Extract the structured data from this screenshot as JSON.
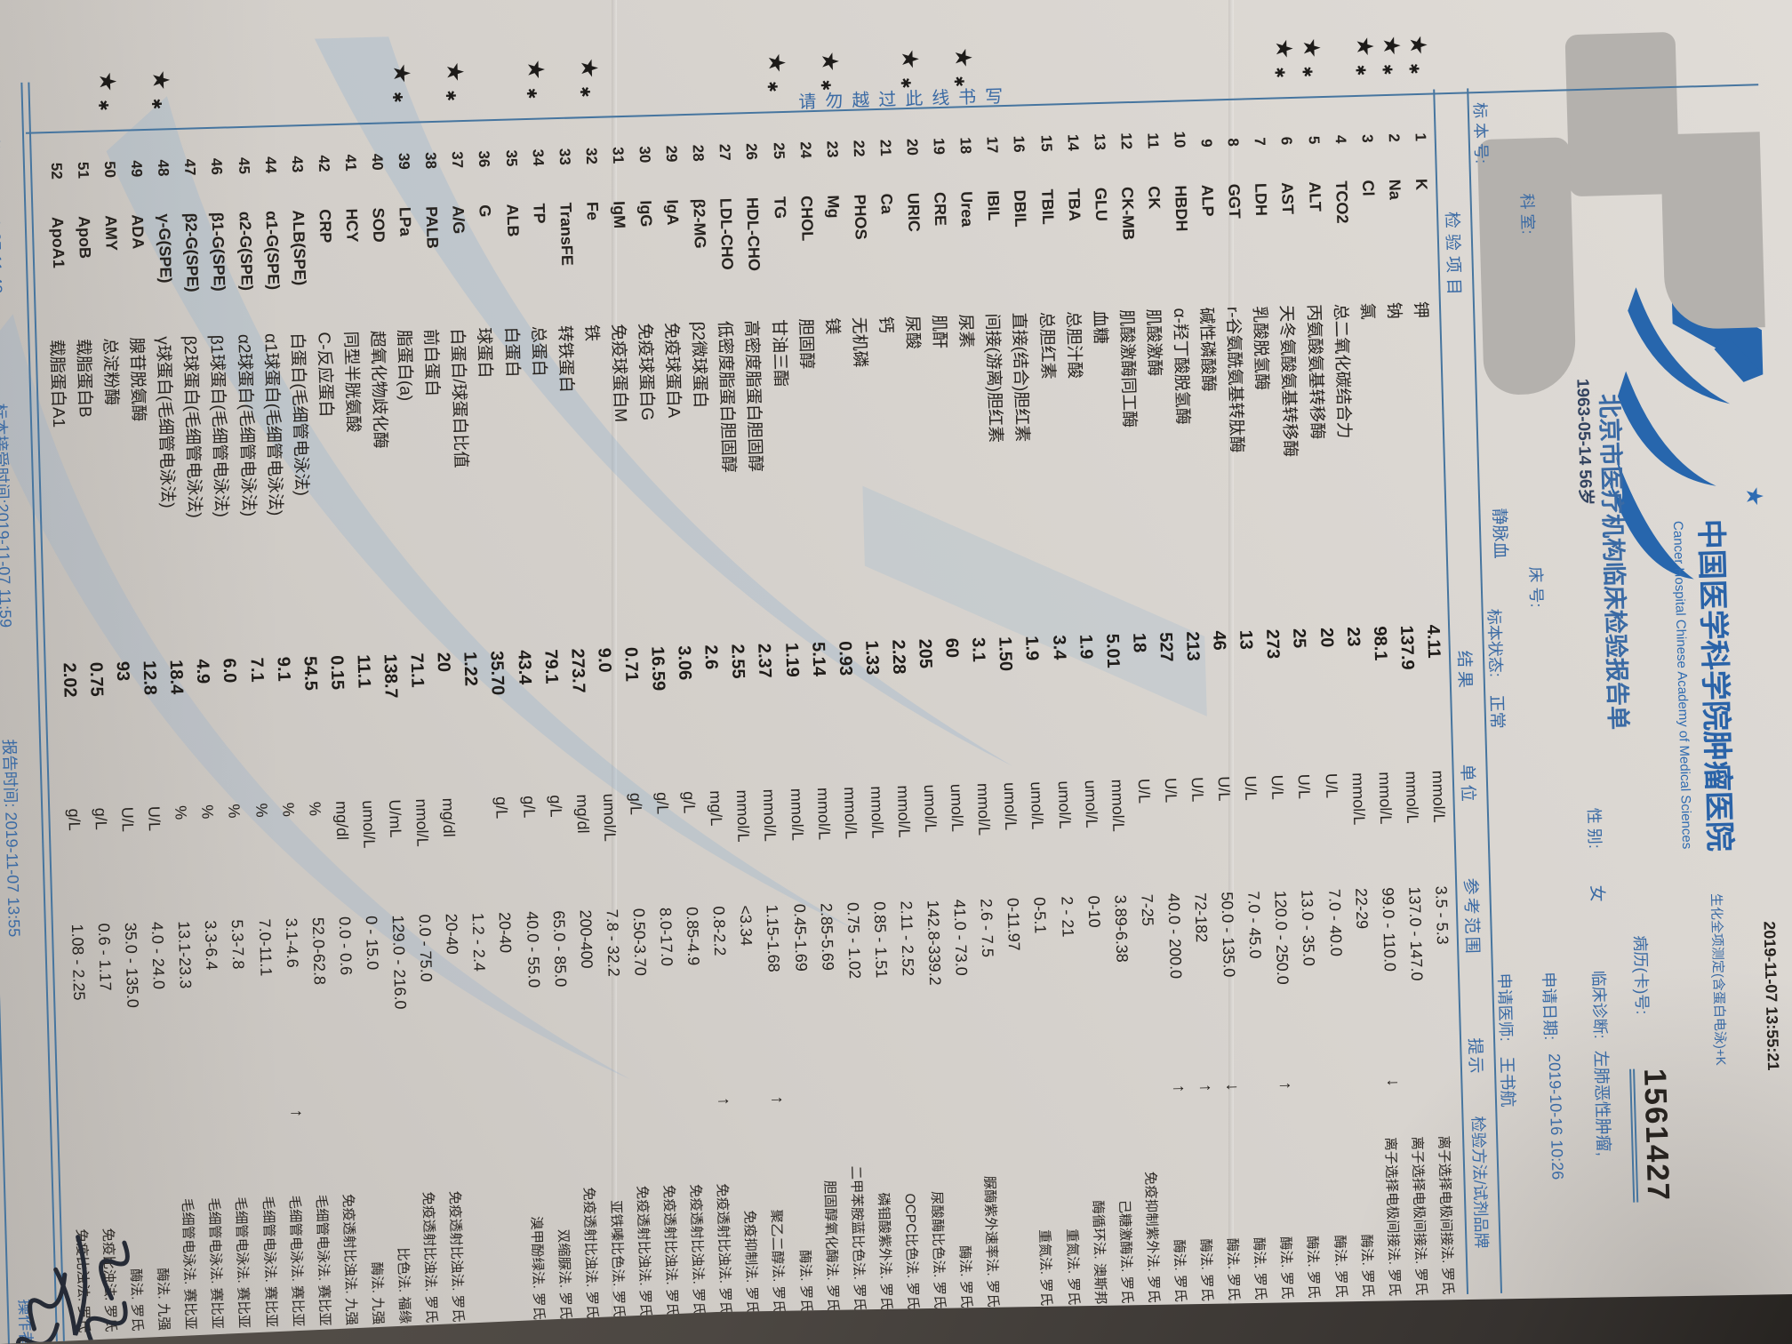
{
  "header": {
    "print_time": "2019-11-07 13:55:21",
    "title": "中国医学科学院肿瘤医院",
    "subtitle": "生化全项测定(含蛋白电泳)+K",
    "english": "Cancer Hospital Chinese Academy of Medical Sciences",
    "report_name": "北京市医疗机构临床检验报告单",
    "case_no_label": "病历(卡)号:",
    "case_no": "1561427"
  },
  "patient": {
    "dob_age": "1963-05-14 56岁",
    "gender_label": "性 别:",
    "gender": "女",
    "diagnosis_label": "临床诊断:",
    "diagnosis": "左肺恶性肿瘤,",
    "dept_label": "科 室:",
    "bed_label": "床 号:",
    "apply_date_label": "申请日期:",
    "apply_date": "2019-10-16 10:26",
    "sample_no_label": "标 本 号:",
    "sample_type": "静脉血",
    "status_label": "标本状态:",
    "status": "正常",
    "doctor_label": "申请医师:",
    "doctor": "王书航"
  },
  "table": {
    "headers": {
      "item": "检验项目",
      "result": "结果",
      "unit": "单位",
      "range": "参考范围",
      "hint": "提示",
      "method": "检验方法/试剂品牌"
    },
    "rows": [
      {
        "no": "1",
        "code": "K",
        "name": "钾",
        "result": "4.11",
        "unit": "mmol/L",
        "range": "3.5 - 5.3",
        "flag": "",
        "method": "离子选择电极间接法. 罗氏"
      },
      {
        "no": "2",
        "code": "Na",
        "name": "钠",
        "result": "137.9",
        "unit": "mmol/L",
        "range": "137.0 - 147.0",
        "flag": "",
        "method": "离子选择电极间接法. 罗氏"
      },
      {
        "no": "3",
        "code": "Cl",
        "name": "氯",
        "result": "98.1",
        "unit": "mmol/L",
        "range": "99.0 - 110.0",
        "flag": "↓",
        "method": "离子选择电极间接法. 罗氏"
      },
      {
        "no": "4",
        "code": "TCO2",
        "name": "总二氧化碳结合力",
        "result": "23",
        "unit": "mmol/L",
        "range": "22-29",
        "flag": "",
        "method": "酶法. 罗氏"
      },
      {
        "no": "5",
        "code": "ALT",
        "name": "丙氨酸氨基转移酶",
        "result": "20",
        "unit": "U/L",
        "range": "7.0 - 40.0",
        "flag": "",
        "method": "酶法. 罗氏"
      },
      {
        "no": "6",
        "code": "AST",
        "name": "天冬氨酸氨基转移酶",
        "result": "25",
        "unit": "U/L",
        "range": "13.0 - 35.0",
        "flag": "",
        "method": "酶法. 罗氏"
      },
      {
        "no": "7",
        "code": "LDH",
        "name": "乳酸脱氢酶",
        "result": "273",
        "unit": "U/L",
        "range": "120.0 - 250.0",
        "flag": "↑",
        "method": "酶法. 罗氏"
      },
      {
        "no": "8",
        "code": "GGT",
        "name": "r-谷氨酰氨基转肽酶",
        "result": "13",
        "unit": "U/L",
        "range": "7.0 - 45.0",
        "flag": "",
        "method": "酶法. 罗氏"
      },
      {
        "no": "9",
        "code": "ALP",
        "name": "碱性磷酸酶",
        "result": "46",
        "unit": "U/L",
        "range": "50.0 - 135.0",
        "flag": "↓",
        "method": "酶法. 罗氏"
      },
      {
        "no": "10",
        "code": "HBDH",
        "name": "α-羟丁酸脱氢酶",
        "result": "213",
        "unit": "U/L",
        "range": "72-182",
        "flag": "↑",
        "method": "酶法. 罗氏"
      },
      {
        "no": "11",
        "code": "CK",
        "name": "肌酸激酶",
        "result": "527",
        "unit": "U/L",
        "range": "40.0 - 200.0",
        "flag": "↑",
        "method": "酶法. 罗氏"
      },
      {
        "no": "12",
        "code": "CK-MB",
        "name": "肌酸激酶同工酶",
        "result": "18",
        "unit": "U/L",
        "range": "7-25",
        "flag": "",
        "method": "免疫抑制紫外法. 罗氏"
      },
      {
        "no": "13",
        "code": "GLU",
        "name": "血糖",
        "result": "5.01",
        "unit": "mmol/L",
        "range": "3.89-6.38",
        "flag": "",
        "method": "己糖激酶法. 罗氏"
      },
      {
        "no": "14",
        "code": "TBA",
        "name": "总胆汁酸",
        "result": "1.9",
        "unit": "umol/L",
        "range": "0-10",
        "flag": "",
        "method": "酶循环法. 澳斯邦"
      },
      {
        "no": "15",
        "code": "TBIL",
        "name": "总胆红素",
        "result": "3.4",
        "unit": "umol/L",
        "range": "2 - 21",
        "flag": "",
        "method": "重氮法. 罗氏"
      },
      {
        "no": "16",
        "code": "DBIL",
        "name": "直接(结合)胆红素",
        "result": "1.9",
        "unit": "umol/L",
        "range": "0-5.1",
        "flag": "",
        "method": "重氮法. 罗氏"
      },
      {
        "no": "17",
        "code": "IBIL",
        "name": "间接(游离)胆红素",
        "result": "1.50",
        "unit": "umol/L",
        "range": "0-11.97",
        "flag": "",
        "method": ""
      },
      {
        "no": "18",
        "code": "Urea",
        "name": "尿素",
        "result": "3.1",
        "unit": "mmol/L",
        "range": "2.6 - 7.5",
        "flag": "",
        "method": "脲酶紫外速率法. 罗氏"
      },
      {
        "no": "19",
        "code": "CRE",
        "name": "肌酐",
        "result": "60",
        "unit": "umol/L",
        "range": "41.0 - 73.0",
        "flag": "",
        "method": "酶法. 罗氏"
      },
      {
        "no": "20",
        "code": "URIC",
        "name": "尿酸",
        "result": "205",
        "unit": "umol/L",
        "range": "142.8-339.2",
        "flag": "",
        "method": "尿酸酶比色法. 罗氏"
      },
      {
        "no": "21",
        "code": "Ca",
        "name": "钙",
        "result": "2.28",
        "unit": "mmol/L",
        "range": "2.11 - 2.52",
        "flag": "",
        "method": "OCPC比色法. 罗氏"
      },
      {
        "no": "22",
        "code": "PHOS",
        "name": "无机磷",
        "result": "1.33",
        "unit": "mmol/L",
        "range": "0.85 - 1.51",
        "flag": "",
        "method": "磷钼酸紫外法. 罗氏"
      },
      {
        "no": "23",
        "code": "Mg",
        "name": "镁",
        "result": "0.93",
        "unit": "mmol/L",
        "range": "0.75 - 1.02",
        "flag": "",
        "method": "二甲苯胺蓝比色法. 罗氏"
      },
      {
        "no": "24",
        "code": "CHOL",
        "name": "胆固醇",
        "result": "5.14",
        "unit": "mmol/L",
        "range": "2.85-5.69",
        "flag": "",
        "method": "胆固醇氧化酶法. 罗氏"
      },
      {
        "no": "25",
        "code": "TG",
        "name": "甘油三酯",
        "result": "1.19",
        "unit": "mmol/L",
        "range": "0.45-1.69",
        "flag": "",
        "method": "酶法. 罗氏"
      },
      {
        "no": "26",
        "code": "HDL-CHO",
        "name": "高密度脂蛋白胆固醇",
        "result": "2.37",
        "unit": "mmol/L",
        "range": "1.15-1.68",
        "flag": "↑",
        "method": "聚乙二醇法. 罗氏"
      },
      {
        "no": "27",
        "code": "LDL-CHO",
        "name": "低密度脂蛋白胆固醇",
        "result": "2.55",
        "unit": "mmol/L",
        "range": "<3.34",
        "flag": "",
        "method": "免疫抑制法. 罗氏"
      },
      {
        "no": "28",
        "code": "β2-MG",
        "name": "β2微球蛋白",
        "result": "2.6",
        "unit": "mg/L",
        "range": "0.8-2.2",
        "flag": "↑",
        "method": "免疫透射比浊法. 罗氏"
      },
      {
        "no": "29",
        "code": "IgA",
        "name": "免疫球蛋白A",
        "result": "3.06",
        "unit": "g/L",
        "range": "0.85-4.9",
        "flag": "",
        "method": "免疫透射比浊法. 罗氏"
      },
      {
        "no": "30",
        "code": "IgG",
        "name": "免疫球蛋白G",
        "result": "16.59",
        "unit": "g/L",
        "range": "8.0-17.0",
        "flag": "",
        "method": "免疫透射比浊法. 罗氏"
      },
      {
        "no": "31",
        "code": "IgM",
        "name": "免疫球蛋白M",
        "result": "0.71",
        "unit": "g/L",
        "range": "0.50-3.70",
        "flag": "",
        "method": "免疫透射比浊法. 罗氏"
      },
      {
        "no": "32",
        "code": "Fe",
        "name": "铁",
        "result": "9.0",
        "unit": "umol/L",
        "range": "7.8 - 32.2",
        "flag": "",
        "method": "亚铁嗪比色法. 罗氏"
      },
      {
        "no": "33",
        "code": "TransFE",
        "name": "转铁蛋白",
        "result": "273.7",
        "unit": "mg/dl",
        "range": "200-400",
        "flag": "",
        "method": "免疫透射比浊法. 罗氏"
      },
      {
        "no": "34",
        "code": "TP",
        "name": "总蛋白",
        "result": "79.1",
        "unit": "g/L",
        "range": "65.0 - 85.0",
        "flag": "",
        "method": "双缩脲法. 罗氏"
      },
      {
        "no": "35",
        "code": "ALB",
        "name": "白蛋白",
        "result": "43.4",
        "unit": "g/L",
        "range": "40.0 - 55.0",
        "flag": "",
        "method": "溴甲酚绿法. 罗氏"
      },
      {
        "no": "36",
        "code": "G",
        "name": "球蛋白",
        "result": "35.70",
        "unit": "g/L",
        "range": "20-40",
        "flag": "",
        "method": ""
      },
      {
        "no": "37",
        "code": "A/G",
        "name": "白蛋白/球蛋白比值",
        "result": "1.22",
        "unit": "",
        "range": "1.2 - 2.4",
        "flag": "",
        "method": ""
      },
      {
        "no": "38",
        "code": "PALB",
        "name": "前白蛋白",
        "result": "20",
        "unit": "mg/dl",
        "range": "20-40",
        "flag": "",
        "method": "免疫透射比浊法. 罗氏"
      },
      {
        "no": "39",
        "code": "LPa",
        "name": "脂蛋白(a)",
        "result": "71.1",
        "unit": "nmol/L",
        "range": "0.0 - 75.0",
        "flag": "",
        "method": "免疫透射比浊法. 罗氏"
      },
      {
        "no": "40",
        "code": "SOD",
        "name": "超氧化物歧化酶",
        "result": "138.7",
        "unit": "U/mL",
        "range": "129.0 - 216.0",
        "flag": "",
        "method": "比色法. 福缘"
      },
      {
        "no": "41",
        "code": "HCY",
        "name": "同型半胱氨酸",
        "result": "11.1",
        "unit": "umol/L",
        "range": "0 - 15.0",
        "flag": "",
        "method": "酶法. 九强"
      },
      {
        "no": "42",
        "code": "CRP",
        "name": "C-反应蛋白",
        "result": "0.15",
        "unit": "mg/dl",
        "range": "0.0 - 0.6",
        "flag": "",
        "method": "免疫透射比浊法. 九强"
      },
      {
        "no": "43",
        "code": "ALB(SPE)",
        "name": "白蛋白(毛细管电泳法)",
        "result": "54.5",
        "unit": "%",
        "range": "52.0-62.8",
        "flag": "",
        "method": "毛细管电泳法. 赛比亚"
      },
      {
        "no": "44",
        "code": "α1-G(SPE)",
        "name": "α1球蛋白(毛细管电泳法)",
        "result": "9.1",
        "unit": "%",
        "range": "3.1-4.6",
        "flag": "↑",
        "method": "毛细管电泳法. 赛比亚"
      },
      {
        "no": "45",
        "code": "α2-G(SPE)",
        "name": "α2球蛋白(毛细管电泳法)",
        "result": "7.1",
        "unit": "%",
        "range": "7.0-11.1",
        "flag": "",
        "method": "毛细管电泳法. 赛比亚"
      },
      {
        "no": "46",
        "code": "β1-G(SPE)",
        "name": "β1球蛋白(毛细管电泳法)",
        "result": "6.0",
        "unit": "%",
        "range": "5.3-7.8",
        "flag": "",
        "method": "毛细管电泳法. 赛比亚"
      },
      {
        "no": "47",
        "code": "β2-G(SPE)",
        "name": "β2球蛋白(毛细管电泳法)",
        "result": "4.9",
        "unit": "%",
        "range": "3.3-6.4",
        "flag": "",
        "method": "毛细管电泳法. 赛比亚"
      },
      {
        "no": "48",
        "code": "γ-G(SPE)",
        "name": "γ球蛋白(毛细管电泳法)",
        "result": "18.4",
        "unit": "%",
        "range": "13.1-23.3",
        "flag": "",
        "method": "毛细管电泳法. 赛比亚"
      },
      {
        "no": "49",
        "code": "ADA",
        "name": "腺苷脱氨酶",
        "result": "12.8",
        "unit": "U/L",
        "range": "4.0 - 24.0",
        "flag": "",
        "method": "酶法. 九强"
      },
      {
        "no": "50",
        "code": "AMY",
        "name": "总淀粉酶",
        "result": "93",
        "unit": "U/L",
        "range": "35.0 - 135.0",
        "flag": "",
        "method": "酶法. 罗氏"
      },
      {
        "no": "51",
        "code": "ApoB",
        "name": "载脂蛋白B",
        "result": "0.75",
        "unit": "g/L",
        "range": "0.6 - 1.17",
        "flag": "",
        "method": "免疫比浊法. 罗氏"
      },
      {
        "no": "52",
        "code": "ApoA1",
        "name": "载脂蛋白A1",
        "result": "2.02",
        "unit": "g/L",
        "range": "1.08 - 2.25",
        "flag": "",
        "method": "免疫比浊法. 罗氏"
      }
    ]
  },
  "margin": {
    "warning": "请勿越过此线书写",
    "star_rows": [
      1,
      2,
      3,
      5,
      6,
      18,
      20,
      23,
      25,
      32,
      34,
      37,
      39,
      48,
      50
    ]
  },
  "footer": {
    "collect": "采集时间: 2019-11-07 11:42",
    "receive": "标本接受时间:2019-11-07 11:59",
    "report": "报告时间: 2019-11-07 13:55",
    "operator_label": "操作者:"
  },
  "colors": {
    "print_blue": "#3a6aa4",
    "title_blue": "#2a63a8",
    "ink_black": "#27231f",
    "paper": "#d8d4cf",
    "desk": "#4c4742",
    "redaction": "#b4b1ad",
    "watermark": "#82a8cf"
  }
}
